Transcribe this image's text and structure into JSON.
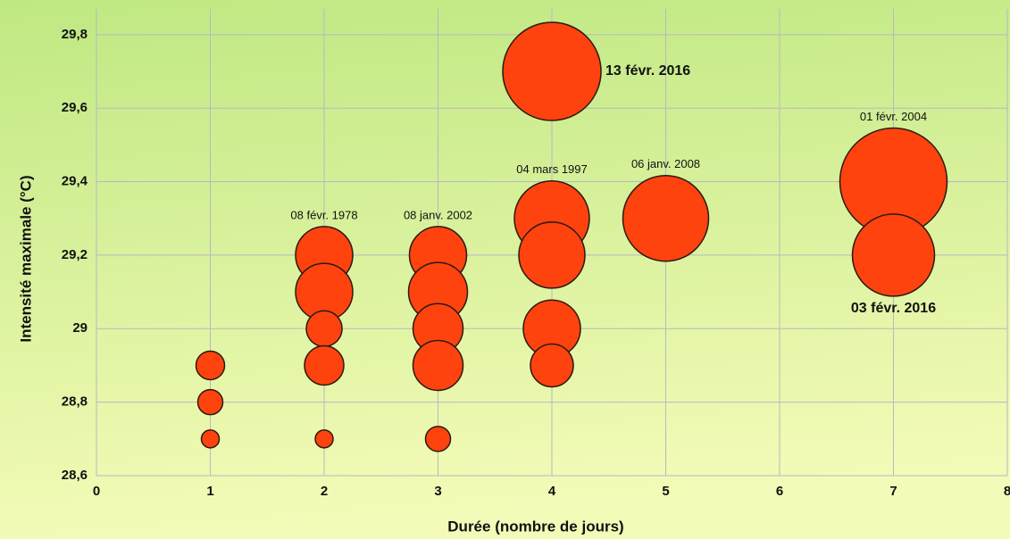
{
  "chart_data": {
    "type": "bubble",
    "xlabel": "Durée (nombre de jours)",
    "ylabel": "Intensité maximale (°C)",
    "xlim": [
      0,
      8
    ],
    "xticks": [
      0,
      1,
      2,
      3,
      4,
      5,
      6,
      7,
      8
    ],
    "ylim": [
      28.6,
      29.87
    ],
    "yticks": [
      {
        "value": 28.6,
        "label": "28,6"
      },
      {
        "value": 28.8,
        "label": "28,8"
      },
      29,
      {
        "value": 29.2,
        "label": "29,2"
      },
      {
        "value": 29.4,
        "label": "29,4"
      },
      {
        "value": 29.6,
        "label": "29,6"
      },
      {
        "value": 29.8,
        "label": "29,8"
      }
    ],
    "grid": true,
    "series": [
      {
        "color": "#ff430f",
        "x": [
          1,
          1,
          1,
          2,
          2,
          2,
          2,
          2,
          3,
          3,
          3,
          3,
          3,
          4,
          4,
          4,
          4,
          4,
          5,
          7,
          7
        ],
        "values": [
          28.9,
          28.8,
          28.7,
          29.2,
          29.1,
          29,
          28.9,
          28.7,
          29.2,
          29.1,
          29,
          28.9,
          28.7,
          29.7,
          29.3,
          29.2,
          29,
          28.9,
          29.3,
          29.4,
          29.2
        ],
        "sizes": [
          16,
          14,
          10,
          32,
          32,
          20,
          22,
          10,
          32,
          33,
          28,
          28,
          14,
          55,
          42,
          37,
          32,
          24,
          48,
          60,
          46
        ]
      }
    ],
    "annotations": [
      {
        "text": "13 févr. 2016",
        "x": 4,
        "y": 29.7,
        "position": "right",
        "bold": true
      },
      {
        "text": "01 févr. 2004",
        "x": 7,
        "y": 29.4,
        "position": "above",
        "bold": false
      },
      {
        "text": "06 janv. 2008",
        "x": 5,
        "y": 29.3,
        "position": "above",
        "bold": false
      },
      {
        "text": "04 mars 1997",
        "x": 4,
        "y": 29.3,
        "position": "above",
        "bold": false
      },
      {
        "text": "08 janv. 2002",
        "x": 3,
        "y": 29.2,
        "position": "above",
        "bold": false
      },
      {
        "text": "08 févr. 1978",
        "x": 2,
        "y": 29.2,
        "position": "above",
        "bold": false
      },
      {
        "text": "03 févr. 2016",
        "x": 7,
        "y": 29.2,
        "position": "below",
        "bold": true
      }
    ]
  }
}
